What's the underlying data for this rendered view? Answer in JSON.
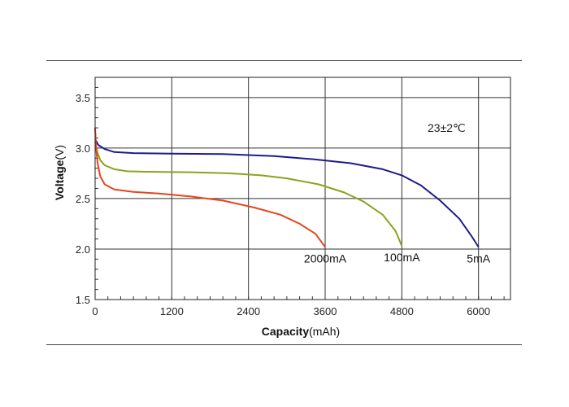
{
  "chart_data": {
    "type": "line",
    "xlabel_bold": "Capacity",
    "xlabel_unit": "(mAh)",
    "ylabel": "Voltage(V)",
    "annotation": "23±2℃",
    "xlim": [
      0,
      6500
    ],
    "ylim": [
      1.5,
      3.7
    ],
    "xticks": [
      0,
      1200,
      2400,
      3600,
      4800,
      6000
    ],
    "yticks": [
      1.5,
      2.0,
      2.5,
      3.0,
      3.5
    ],
    "ytick_labels": [
      "1.5",
      "2.0",
      "2.5",
      "3.0",
      "3.5"
    ],
    "grid": true,
    "series": [
      {
        "name": "5mA",
        "color": "#1c1c8c",
        "points": [
          [
            0,
            3.09
          ],
          [
            50,
            3.03
          ],
          [
            150,
            2.99
          ],
          [
            300,
            2.96
          ],
          [
            600,
            2.95
          ],
          [
            1200,
            2.945
          ],
          [
            2000,
            2.94
          ],
          [
            2800,
            2.92
          ],
          [
            3400,
            2.89
          ],
          [
            4000,
            2.85
          ],
          [
            4500,
            2.79
          ],
          [
            4800,
            2.73
          ],
          [
            5100,
            2.63
          ],
          [
            5400,
            2.48
          ],
          [
            5700,
            2.3
          ],
          [
            5900,
            2.12
          ],
          [
            6000,
            2.02
          ]
        ]
      },
      {
        "name": "100mA",
        "color": "#8ca21e",
        "points": [
          [
            0,
            3.06
          ],
          [
            30,
            2.97
          ],
          [
            80,
            2.88
          ],
          [
            150,
            2.83
          ],
          [
            300,
            2.79
          ],
          [
            500,
            2.77
          ],
          [
            800,
            2.765
          ],
          [
            1500,
            2.76
          ],
          [
            2100,
            2.75
          ],
          [
            2600,
            2.73
          ],
          [
            3000,
            2.7
          ],
          [
            3500,
            2.64
          ],
          [
            3900,
            2.56
          ],
          [
            4200,
            2.47
          ],
          [
            4500,
            2.34
          ],
          [
            4700,
            2.18
          ],
          [
            4800,
            2.03
          ]
        ]
      },
      {
        "name": "2000mA",
        "color": "#e8441c",
        "points": [
          [
            0,
            3.2
          ],
          [
            15,
            3.0
          ],
          [
            40,
            2.85
          ],
          [
            80,
            2.72
          ],
          [
            150,
            2.64
          ],
          [
            300,
            2.59
          ],
          [
            600,
            2.565
          ],
          [
            1000,
            2.55
          ],
          [
            1500,
            2.52
          ],
          [
            2000,
            2.48
          ],
          [
            2500,
            2.41
          ],
          [
            2900,
            2.34
          ],
          [
            3200,
            2.25
          ],
          [
            3450,
            2.15
          ],
          [
            3600,
            2.02
          ]
        ]
      }
    ]
  }
}
